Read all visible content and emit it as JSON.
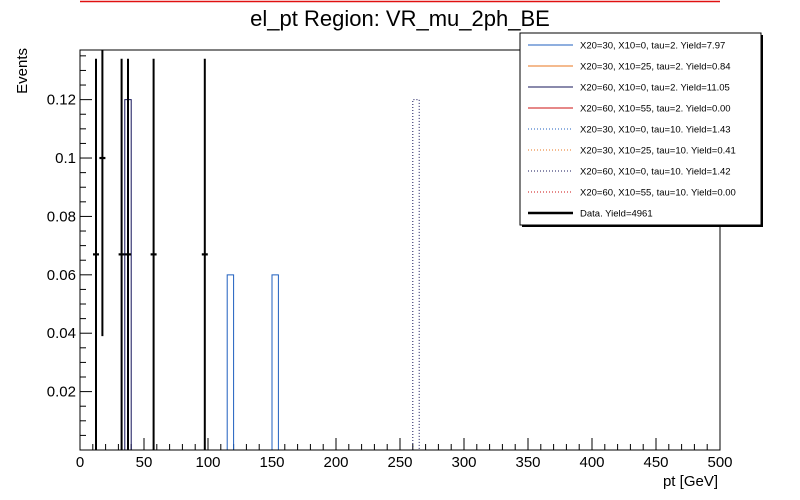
{
  "chart_data": {
    "type": "histogram",
    "title": "el_pt Region: VR_mu_2ph_BE",
    "xlabel": "pt [GeV]",
    "ylabel": "Events",
    "xlim": [
      0,
      500
    ],
    "ylim": [
      0,
      0.137
    ],
    "bin_width": 5,
    "x_ticks": [
      0,
      50,
      100,
      150,
      200,
      250,
      300,
      350,
      400,
      450,
      500
    ],
    "y_ticks": [
      0.02,
      0.04,
      0.06,
      0.08,
      0.1,
      0.12
    ],
    "y_tick_labels": [
      "0.02",
      "0.04",
      "0.06",
      "0.08",
      "0.1",
      "0.12"
    ],
    "legend_position": "top-right",
    "series": [
      {
        "name": "X20=30, X10=0, tau=2. Yield=7.97",
        "color": "#1f5fbf",
        "style": "solid",
        "bins": [
          [
            115,
            0.06
          ],
          [
            150,
            0.06
          ]
        ]
      },
      {
        "name": "X20=30, X10=25, tau=2. Yield=0.84",
        "color": "#e8741c",
        "style": "solid",
        "bins": []
      },
      {
        "name": "X20=60, X10=0, tau=2. Yield=11.05",
        "color": "#14145a",
        "style": "solid",
        "bins": [
          [
            35,
            0.12
          ]
        ]
      },
      {
        "name": "X20=60, X10=55, tau=2. Yield=0.00",
        "color": "#cc1111",
        "style": "solid",
        "bins": []
      },
      {
        "name": "X20=30, X10=0, tau=10. Yield=1.43",
        "color": "#1f5fbf",
        "style": "dotted",
        "bins": []
      },
      {
        "name": "X20=30, X10=25, tau=10. Yield=0.41",
        "color": "#e8741c",
        "style": "dotted",
        "bins": []
      },
      {
        "name": "X20=60, X10=0, tau=10. Yield=1.42",
        "color": "#14145a",
        "style": "dotted",
        "bins": [
          [
            260,
            0.12
          ]
        ]
      },
      {
        "name": "X20=60, X10=55, tau=10. Yield=0.00",
        "color": "#cc1111",
        "style": "dotted",
        "bins": []
      }
    ],
    "data": {
      "name": "Data. Yield=4961",
      "color": "#000000",
      "points": [
        {
          "x": 12.5,
          "y": 0.067,
          "ylow": 0,
          "yhigh": 0.134
        },
        {
          "x": 17.5,
          "y": 0.1,
          "ylow": 0.039,
          "yhigh": 0.137
        },
        {
          "x": 32.5,
          "y": 0.067,
          "ylow": 0,
          "yhigh": 0.134
        },
        {
          "x": 37.5,
          "y": 0.067,
          "ylow": 0,
          "yhigh": 0.134
        },
        {
          "x": 57.5,
          "y": 0.067,
          "ylow": 0,
          "yhigh": 0.134
        },
        {
          "x": 97.5,
          "y": 0.067,
          "ylow": 0,
          "yhigh": 0.134
        }
      ]
    }
  }
}
